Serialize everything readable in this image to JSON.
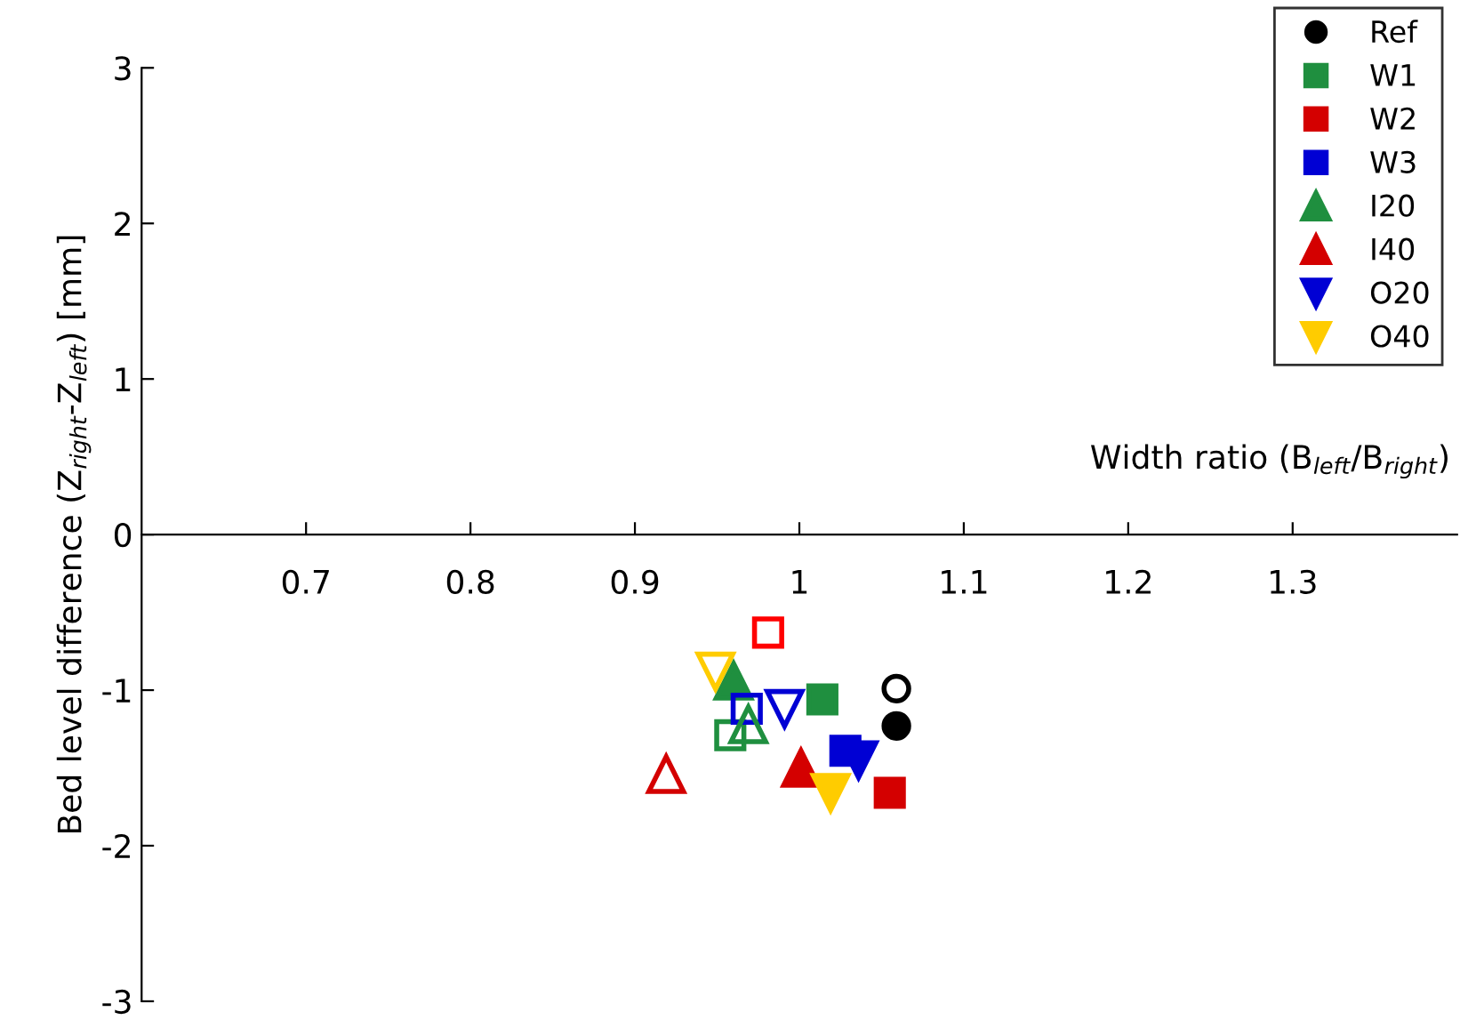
{
  "chart_data": {
    "type": "scatter",
    "xlabel": "Width ratio (B$_{left}$/B$_{right}$)",
    "ylabel": "Bed level difference (Z$_{right}$-Z$_{left}$) [mm]",
    "xlim": [
      0.6,
      1.4
    ],
    "ylim": [
      -3,
      3
    ],
    "xticks": [
      0.7,
      0.8,
      0.9,
      1,
      1.1,
      1.2,
      1.3
    ],
    "yticks": [
      -3,
      -2,
      -1,
      0,
      1,
      2,
      3
    ],
    "legend": "top right",
    "grid": false,
    "series": [
      {
        "name": "Ref",
        "color": "#000000",
        "marker": "circle",
        "x": [
          1.059
        ],
        "values": [
          -1.23
        ]
      },
      {
        "name": "W1",
        "color": "#1f8f3f",
        "marker": "square",
        "x": [
          1.014
        ],
        "values": [
          -1.06
        ]
      },
      {
        "name": "W2",
        "color": "#d40000",
        "marker": "square",
        "x": [
          1.055
        ],
        "values": [
          -1.66
        ]
      },
      {
        "name": "W3",
        "color": "#0000d4",
        "marker": "square",
        "x": [
          1.028
        ],
        "values": [
          -1.39
        ]
      },
      {
        "name": "I20",
        "color": "#1f8f3f",
        "marker": "triangle",
        "x": [
          0.96
        ],
        "values": [
          -0.94
        ]
      },
      {
        "name": "I40",
        "color": "#d40000",
        "marker": "triangle",
        "x": [
          1.001
        ],
        "values": [
          -1.5
        ]
      },
      {
        "name": "O20",
        "color": "#0000d4",
        "marker": "triangle-down",
        "x": [
          1.036
        ],
        "values": [
          -1.45
        ]
      },
      {
        "name": "O40",
        "color": "#ffcc00",
        "marker": "triangle-down",
        "x": [
          1.019
        ],
        "values": [
          -1.66
        ]
      },
      {
        "color": "#000000",
        "marker": "circle-open",
        "x": [
          1.059
        ],
        "values": [
          -0.99
        ]
      },
      {
        "color": "#1f8f3f",
        "marker": "square-open",
        "x": [
          0.958
        ],
        "values": [
          -1.29
        ]
      },
      {
        "color": "#ff0000",
        "marker": "square-open",
        "x": [
          0.981
        ],
        "values": [
          -0.63
        ]
      },
      {
        "color": "#0000d4",
        "marker": "square-open",
        "x": [
          0.968
        ],
        "values": [
          -1.12
        ]
      },
      {
        "color": "#1f8f3f",
        "marker": "triangle-open",
        "x": [
          0.969
        ],
        "values": [
          -1.22
        ]
      },
      {
        "color": "#d40000",
        "marker": "triangle-open",
        "x": [
          0.919
        ],
        "values": [
          -1.54
        ]
      },
      {
        "color": "#0000d4",
        "marker": "triangle-down-open",
        "x": [
          0.991
        ],
        "values": [
          -1.12
        ]
      },
      {
        "color": "#ffcc00",
        "marker": "triangle-down-open",
        "x": [
          0.949
        ],
        "values": [
          -0.88
        ]
      }
    ]
  }
}
